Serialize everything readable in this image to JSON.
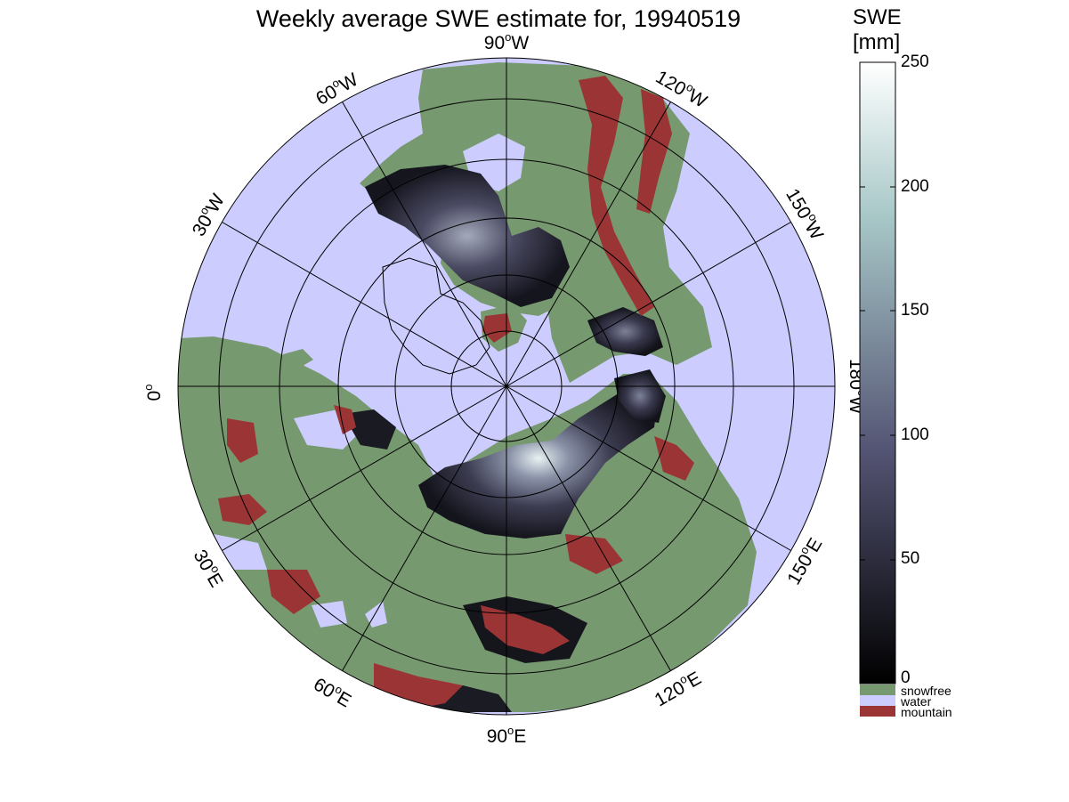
{
  "title": "Weekly average SWE estimate for, 19940519",
  "map": {
    "projection": "north-polar-stereographic",
    "longitude_labels": [
      {
        "lon": 90,
        "hemi": "W",
        "text": "90",
        "suffix": "W"
      },
      {
        "lon": 120,
        "hemi": "W",
        "text": "120",
        "suffix": "W"
      },
      {
        "lon": 150,
        "hemi": "W",
        "text": "150",
        "suffix": "W"
      },
      {
        "lon": 180,
        "hemi": "W",
        "text": "180",
        "suffix": "W"
      },
      {
        "lon": 150,
        "hemi": "E",
        "text": "150",
        "suffix": "E"
      },
      {
        "lon": 120,
        "hemi": "E",
        "text": "120",
        "suffix": "E"
      },
      {
        "lon": 90,
        "hemi": "E",
        "text": "90",
        "suffix": "E"
      },
      {
        "lon": 60,
        "hemi": "E",
        "text": "60",
        "suffix": "E"
      },
      {
        "lon": 30,
        "hemi": "E",
        "text": "30",
        "suffix": "E"
      },
      {
        "lon": 0,
        "hemi": "",
        "text": "0",
        "suffix": ""
      },
      {
        "lon": 30,
        "hemi": "W",
        "text": "30",
        "suffix": "W"
      },
      {
        "lon": 60,
        "hemi": "W",
        "text": "60",
        "suffix": "W"
      }
    ],
    "colors": {
      "water": "#ccccff",
      "snowfree": "#77996f",
      "mountain": "#9b3535",
      "grid": "#000000"
    }
  },
  "colorbar": {
    "title_line1": "SWE",
    "title_line2": "[mm]",
    "range": [
      0,
      250
    ],
    "ticks": [
      "0",
      "50",
      "100",
      "150",
      "200",
      "250"
    ],
    "colormap": "bone",
    "legend": [
      {
        "label": "snowfree",
        "color": "#77996f"
      },
      {
        "label": "water",
        "color": "#ccccff"
      },
      {
        "label": "mountain",
        "color": "#9b3535"
      }
    ]
  }
}
